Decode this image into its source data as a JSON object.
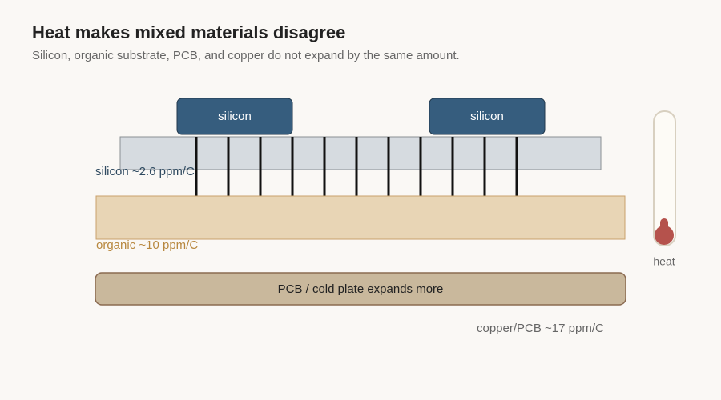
{
  "header": {
    "title": "Heat makes mixed materials disagree",
    "subtitle": "Silicon, organic substrate, PCB, and copper do not expand by the same amount."
  },
  "chips": [
    {
      "label": "silicon"
    },
    {
      "label": "silicon"
    }
  ],
  "layers": {
    "silicon": "silicon ~2.6 ppm/C",
    "organic": "organic ~10 ppm/C",
    "pcb": "PCB / cold plate expands more",
    "copper": "copper/PCB ~17 ppm/C"
  },
  "thermometer": {
    "label": "heat"
  }
}
